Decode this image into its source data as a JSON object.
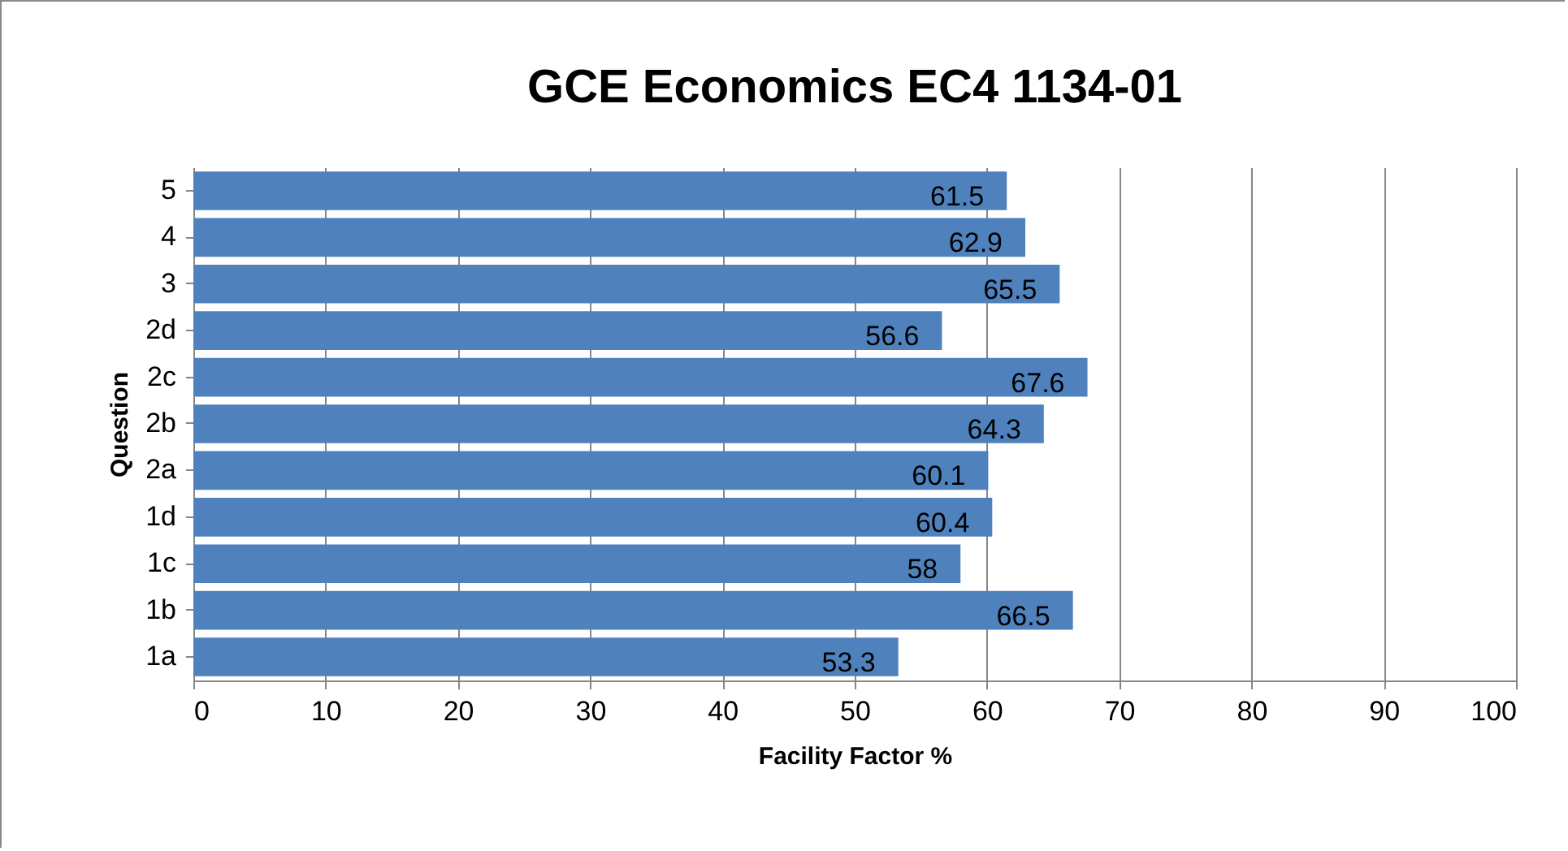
{
  "chart_data": {
    "type": "bar",
    "orientation": "horizontal",
    "title": "GCE Economics EC4 1134-01",
    "xlabel": "Facility Factor %",
    "ylabel": "Question",
    "categories": [
      "5",
      "4",
      "3",
      "2d",
      "2c",
      "2b",
      "2a",
      "1d",
      "1c",
      "1b",
      "1a"
    ],
    "values": [
      61.5,
      62.9,
      65.5,
      56.6,
      67.6,
      64.3,
      60.1,
      60.4,
      58,
      66.5,
      53.3
    ],
    "color": "#4f81bd",
    "xlim": [
      0,
      100
    ],
    "xticks": [
      0,
      10,
      20,
      30,
      40,
      50,
      60,
      70,
      80,
      90,
      100
    ],
    "grid": "x",
    "data_labels": true
  }
}
